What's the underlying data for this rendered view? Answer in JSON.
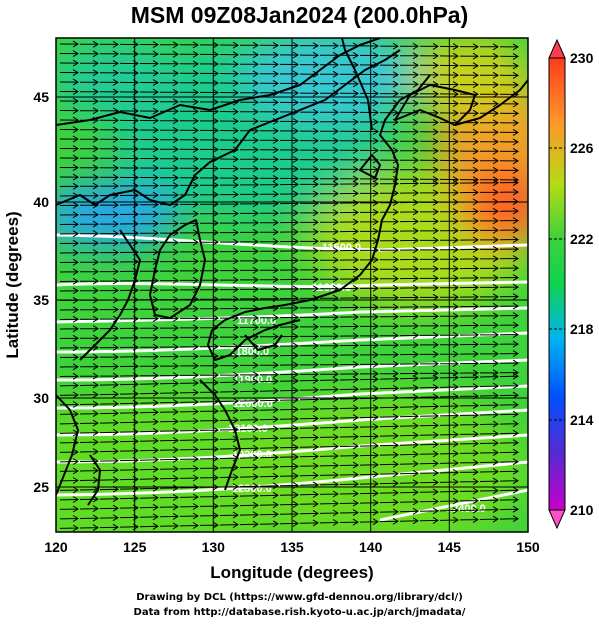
{
  "title": "MSM 09Z08Jan2024 (200.0hPa)",
  "map": {
    "xlabel": "Longitude (degrees)",
    "ylabel": "Latitude  (degrees)",
    "xlim": [
      120,
      150
    ],
    "ylim": [
      22.4,
      47.6
    ],
    "x_ticks": [
      "120",
      "125",
      "130",
      "135",
      "140",
      "145",
      "150"
    ],
    "y_ticks": [
      "25",
      "30",
      "35",
      "40",
      "45"
    ],
    "grid": true,
    "wind_arrows": "westerly",
    "contour_labels": [
      "11500.0",
      "11600.0",
      "11700.0",
      "11800.0",
      "11900.0",
      "12000.0",
      "12100.0",
      "12200.0",
      "12300.0",
      "12400.0"
    ],
    "colorbar": {
      "tick_labels": [
        "230",
        "226",
        "222",
        "218",
        "214",
        "210"
      ],
      "range": [
        210,
        230
      ],
      "colors": [
        "#c800c8",
        "#3c28d2",
        "#0066ff",
        "#00d2e6",
        "#10d250",
        "#50dc28",
        "#c8dc14",
        "#ff8c1e",
        "#ff3c1e"
      ]
    }
  },
  "credits": {
    "line1": "Drawing by DCL (https://www.gfd-dennou.org/library/dcl/)",
    "line2": "Data from http://database.rish.kyoto-u.ac.jp/arch/jmadata/"
  }
}
